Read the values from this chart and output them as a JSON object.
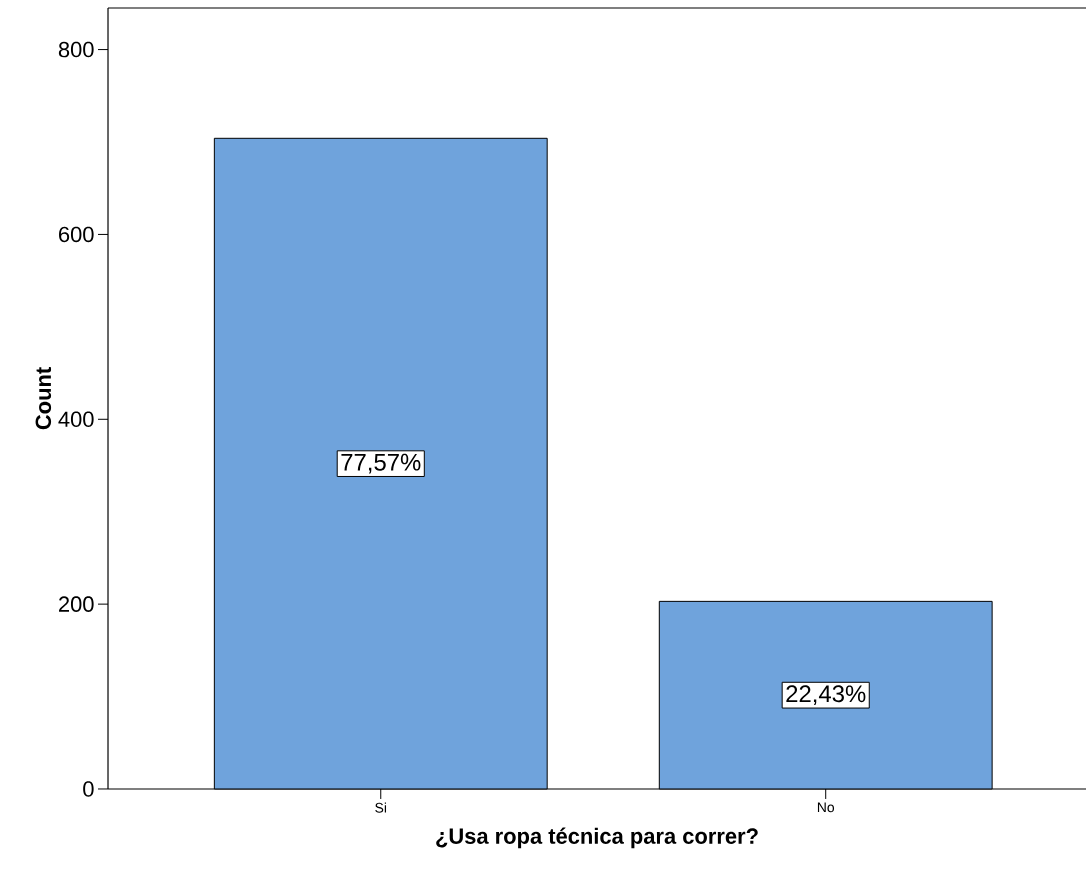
{
  "chart_data": {
    "type": "bar",
    "xlabel": "¿Usa ropa técnica para correr?",
    "ylabel": "Count",
    "categories": [
      "Si",
      "No"
    ],
    "values": [
      704,
      203
    ],
    "annotations": [
      "77,57%",
      "22,43%"
    ],
    "color": "#6fa3dc",
    "ylim": [
      0,
      845
    ],
    "yticks": [
      0,
      200,
      400,
      600,
      800
    ],
    "grid": false
  }
}
